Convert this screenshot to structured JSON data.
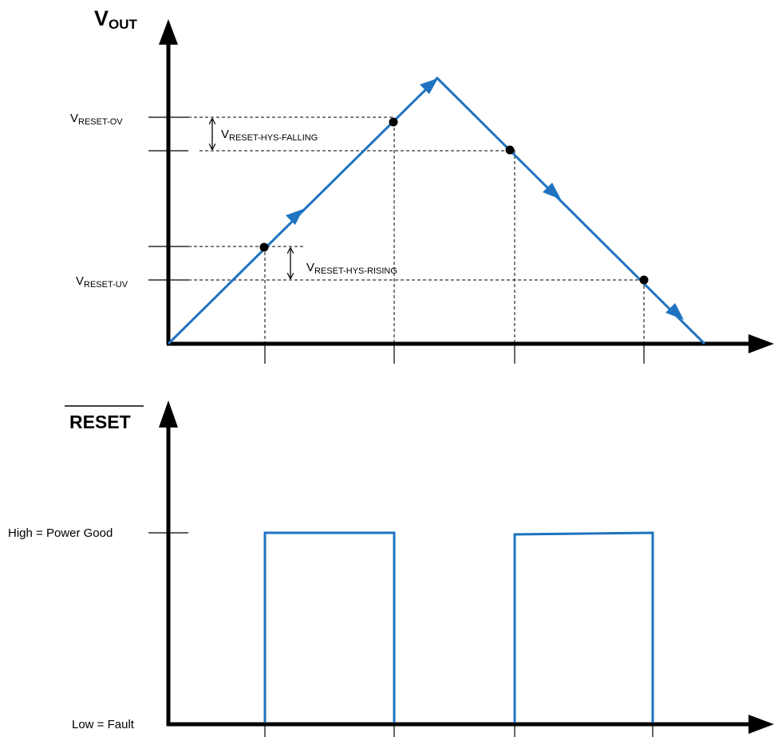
{
  "top_plot": {
    "y_axis_title_main": "V",
    "y_axis_title_sub": "OUT",
    "labels": {
      "reset_ov_main": "V",
      "reset_ov_sub": "RESET-OV",
      "reset_uv_main": "V",
      "reset_uv_sub": "RESET-UV",
      "hys_falling_main": "V",
      "hys_falling_sub": "RESET-HYS-FALLING",
      "hys_rising_main": "V",
      "hys_rising_sub": "RESET-HYS-RISING"
    },
    "colors": {
      "trace": "#1f73c1",
      "axis": "#000000"
    }
  },
  "bottom_plot": {
    "y_axis_title": "RESET",
    "high_label": "High = Power Good",
    "low_label": "Low = Fault",
    "colors": {
      "trace": "#1f73c1"
    }
  }
}
